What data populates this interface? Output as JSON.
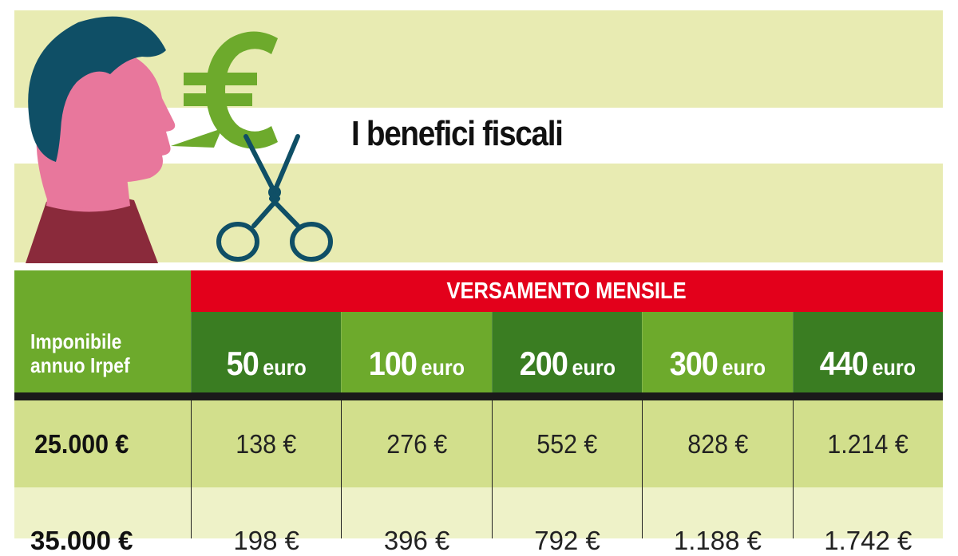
{
  "title": "I benefici fiscali",
  "table": {
    "header_left": [
      "Imponibile",
      "annuo Irpef"
    ],
    "group_header": "VERSAMENTO MENSILE",
    "columns": [
      {
        "amount": "50",
        "unit": "euro"
      },
      {
        "amount": "100",
        "unit": "euro"
      },
      {
        "amount": "200",
        "unit": "euro"
      },
      {
        "amount": "300",
        "unit": "euro"
      },
      {
        "amount": "440",
        "unit": "euro"
      }
    ],
    "rows": [
      {
        "income": "25.000 €",
        "values": [
          "138 €",
          "276 €",
          "552 €",
          "828 €",
          "1.214 €"
        ]
      },
      {
        "income": "35.000 €",
        "values": [
          "198 €",
          "396 €",
          "792 €",
          "1.188 €",
          "1.742 €"
        ]
      }
    ]
  },
  "colors": {
    "band_light": "#e8ebb2",
    "green_light": "#6daa2c",
    "green_dark": "#3a7d22",
    "red": "#e3001b",
    "row_odd": "#d2df8c",
    "row_even": "#eef2c8"
  },
  "icons": [
    "person-profile-icon",
    "euro-speech-bubble-icon",
    "scissors-icon"
  ]
}
